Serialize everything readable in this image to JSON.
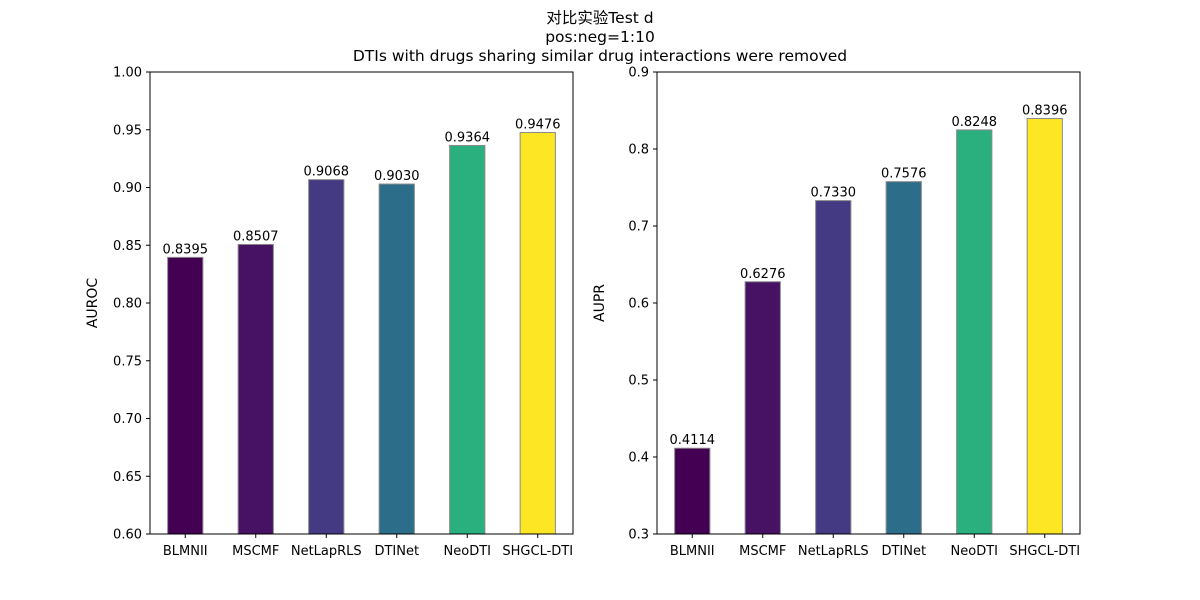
{
  "figure": {
    "title_lines": [
      "对比实验Test d",
      "pos:neg=1:10",
      "DTIs with drugs sharing similar drug interactions were removed"
    ]
  },
  "chart_data": [
    {
      "type": "bar",
      "ylabel": "AUROC",
      "xlabel": "",
      "categories": [
        "BLMNII",
        "MSCMF",
        "NetLapRLS",
        "DTINet",
        "NeoDTI",
        "SHGCL-DTI"
      ],
      "values": [
        0.8395,
        0.8507,
        0.9068,
        0.903,
        0.9364,
        0.9476
      ],
      "value_labels": [
        "0.8395",
        "0.8507",
        "0.9068",
        "0.9030",
        "0.9364",
        "0.9476"
      ],
      "ylim": [
        0.6,
        1.0
      ],
      "yticks": [
        "0.60",
        "0.65",
        "0.70",
        "0.75",
        "0.80",
        "0.85",
        "0.90",
        "0.95",
        "1.00"
      ],
      "colors": [
        "#440154",
        "#471164",
        "#433a83",
        "#2c6e8a",
        "#2ab07f",
        "#fde725"
      ],
      "bar_edge_color": "#8a8a8a",
      "grid": false
    },
    {
      "type": "bar",
      "ylabel": "AUPR",
      "xlabel": "",
      "categories": [
        "BLMNII",
        "MSCMF",
        "NetLapRLS",
        "DTINet",
        "NeoDTI",
        "SHGCL-DTI"
      ],
      "values": [
        0.4114,
        0.6276,
        0.733,
        0.7576,
        0.8248,
        0.8396
      ],
      "value_labels": [
        "0.4114",
        "0.6276",
        "0.7330",
        "0.7576",
        "0.8248",
        "0.8396"
      ],
      "ylim": [
        0.3,
        0.9
      ],
      "yticks": [
        "0.3",
        "0.4",
        "0.5",
        "0.6",
        "0.7",
        "0.8",
        "0.9"
      ],
      "colors": [
        "#440154",
        "#471164",
        "#433a83",
        "#2c6e8a",
        "#2ab07f",
        "#fde725"
      ],
      "bar_edge_color": "#8a8a8a",
      "grid": false
    }
  ]
}
